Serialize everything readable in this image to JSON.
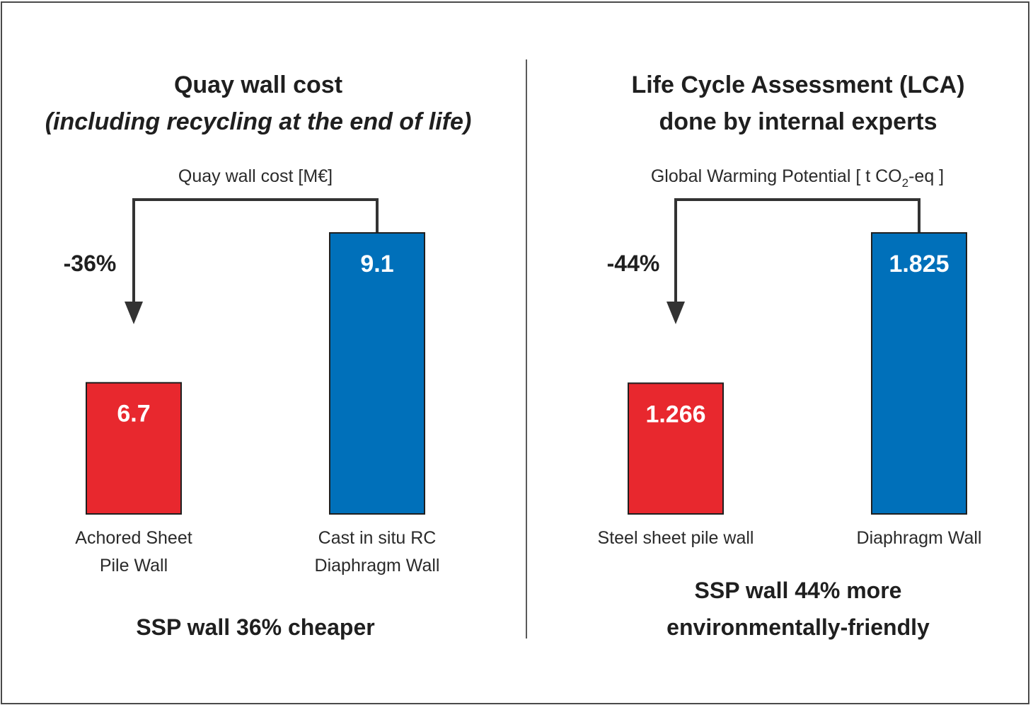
{
  "colors": {
    "red_bar": "#E8282E",
    "blue_bar": "#0070BA",
    "connector": "#333333"
  },
  "left_panel": {
    "title_line1": "Quay wall cost",
    "title_line2": "(including recycling at the end of life)",
    "summary": "SSP wall 36% cheaper"
  },
  "right_panel": {
    "title_line1": "Life Cycle Assessment (LCA)",
    "title_line2": "done by internal experts",
    "summary_line1": "SSP wall 44% more",
    "summary_line2": "environmentally-friendly"
  },
  "chart_data": [
    {
      "type": "bar",
      "ylabel": "Quay wall cost [M€]",
      "categories": [
        [
          "Achored Sheet",
          "Pile Wall"
        ],
        [
          "Cast in situ RC",
          "Diaphragm Wall"
        ]
      ],
      "values": [
        6.7,
        9.1
      ],
      "value_labels": [
        "6.7",
        "9.1"
      ],
      "bar_colors": [
        "#E8282E",
        "#0070BA"
      ],
      "change_label": "-36%",
      "ylim": [
        4.6,
        9.1
      ]
    },
    {
      "type": "bar",
      "ylabel_main": "Global Warming Potential [ t CO",
      "ylabel_sub": "2",
      "ylabel_tail": "-eq ]",
      "categories": [
        [
          "Steel sheet pile wall"
        ],
        [
          "Diaphragm Wall"
        ]
      ],
      "values": [
        1.266,
        1.825
      ],
      "value_labels": [
        "1.266",
        "1.825"
      ],
      "bar_colors": [
        "#E8282E",
        "#0070BA"
      ],
      "change_label": "-44%",
      "ylim": [
        0.78,
        1.825
      ]
    }
  ]
}
